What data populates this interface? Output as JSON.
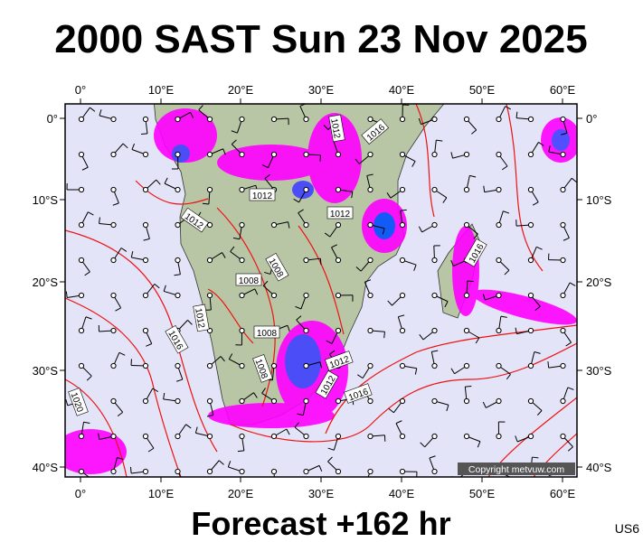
{
  "header": {
    "title": "2000 SAST Sun 23 Nov 2025"
  },
  "footer": {
    "forecast": "Forecast +162 hr",
    "code": "US6"
  },
  "map": {
    "lon_labels": [
      "0°",
      "10°E",
      "20°E",
      "30°E",
      "40°E",
      "50°E",
      "60°E"
    ],
    "lat_labels": [
      "0°",
      "10°S",
      "20°S",
      "30°S",
      "40°S"
    ],
    "contour_labels": [
      "1012",
      "1016",
      "1012",
      "1012",
      "1012",
      "1016",
      "1008",
      "1008",
      "1012",
      "1008",
      "1016",
      "1008",
      "1012",
      "1012",
      "1016",
      "1020"
    ],
    "copyright": "Copyright metvuw.com"
  }
}
